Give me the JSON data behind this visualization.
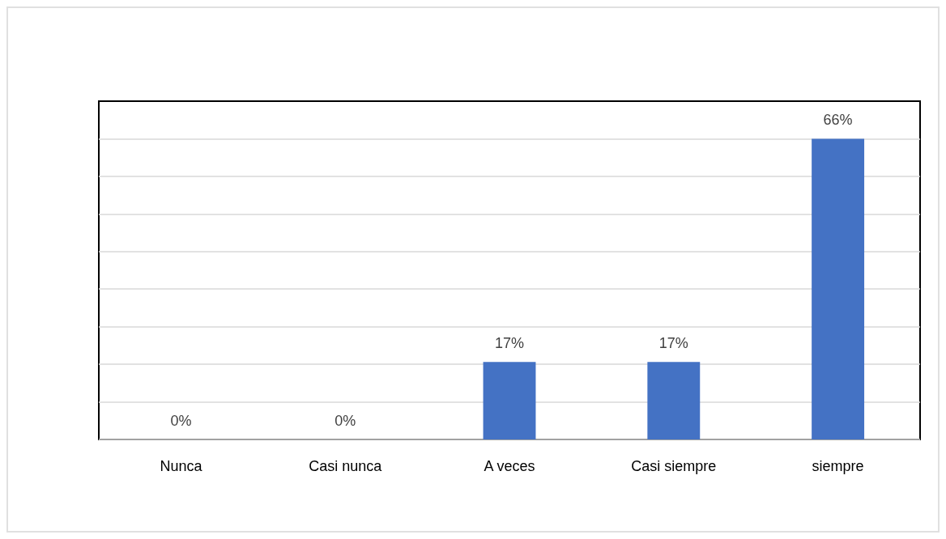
{
  "chart_data": {
    "type": "bar",
    "categories": [
      "Nunca",
      "Casi nunca",
      "A veces",
      "Casi siempre",
      "siempre"
    ],
    "values": [
      0,
      0,
      17,
      17,
      66
    ],
    "value_labels": [
      "0%",
      "0%",
      "17%",
      "17%",
      "66%"
    ],
    "color": "#4472c4",
    "ylim": [
      0,
      74.25
    ],
    "yticks": [
      {
        "value": 0,
        "label": null
      },
      {
        "value": 8.25,
        "label": null
      },
      {
        "value": 16.5,
        "label": null
      },
      {
        "value": 24.75,
        "label": null
      },
      {
        "value": 33,
        "label": null
      },
      {
        "value": 41.25,
        "label": null
      },
      {
        "value": 49.5,
        "label": null
      },
      {
        "value": 57.75,
        "label": null
      },
      {
        "value": 66,
        "label": null
      }
    ],
    "grid": "y",
    "tick_labels": "x"
  }
}
